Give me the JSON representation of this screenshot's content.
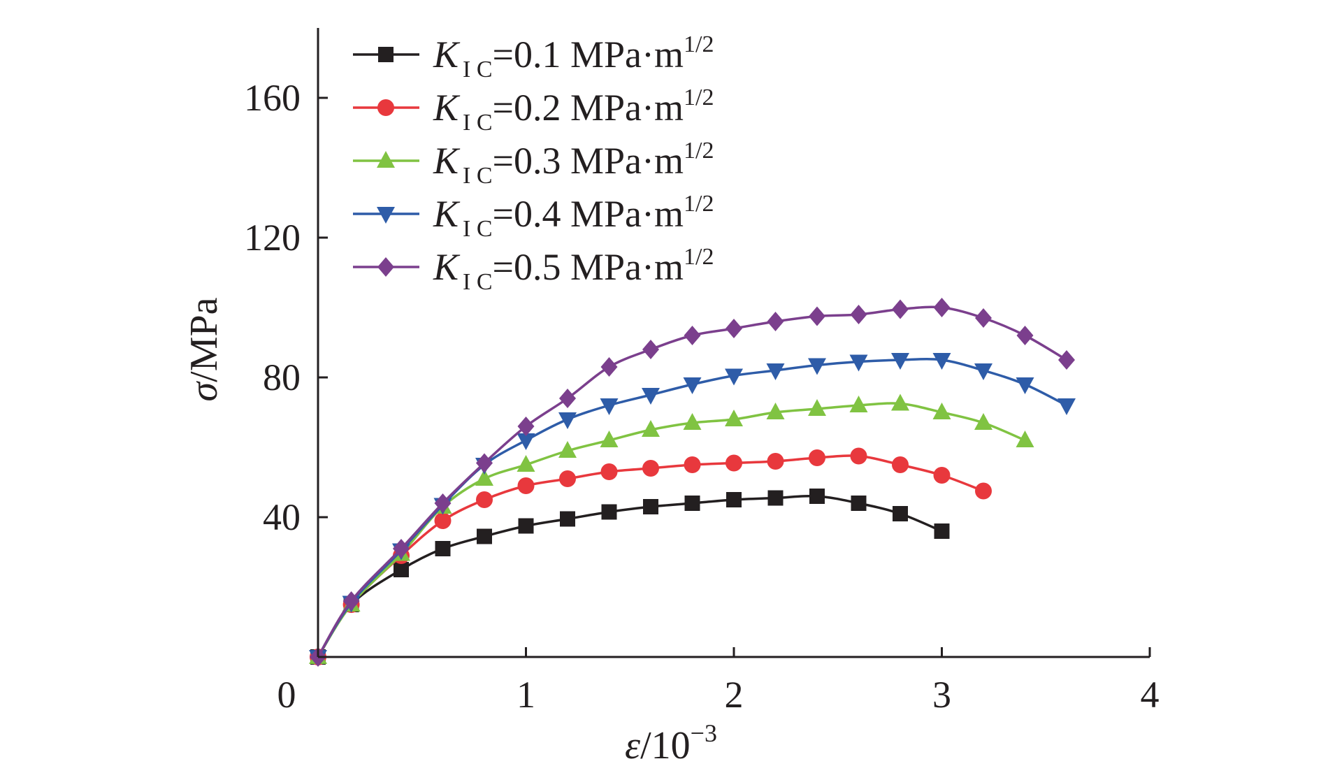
{
  "chart_data": {
    "type": "line",
    "xlabel_symbol": "ε",
    "xlabel_unit": "/10",
    "xlabel_exponent": "−3",
    "ylabel_symbol": "σ",
    "ylabel_unit": "/MPa",
    "xlim": [
      0,
      4
    ],
    "ylim": [
      0,
      180
    ],
    "x_ticks": [
      1,
      2,
      3,
      4
    ],
    "x_tick_labels": [
      "1",
      "2",
      "3",
      "4"
    ],
    "origin_label": "0",
    "y_ticks": [
      40,
      80,
      120,
      160
    ],
    "y_tick_labels": [
      "40",
      "80",
      "120",
      "160"
    ],
    "grid": false,
    "legend_position": "top-left",
    "legend_symbol": "K",
    "legend_subscript": "I C",
    "legend_unit": " MPa·m",
    "legend_exponent": "1/2",
    "series": [
      {
        "name": "=0.1",
        "color": "#231f20",
        "marker": "square",
        "x": [
          0,
          0.16,
          0.4,
          0.6,
          0.8,
          1.0,
          1.2,
          1.4,
          1.6,
          1.8,
          2.0,
          2.2,
          2.4,
          2.6,
          2.8,
          3.0
        ],
        "y": [
          0,
          15,
          25,
          31,
          34.5,
          37.5,
          39.5,
          41.5,
          43,
          44,
          45,
          45.5,
          46,
          44,
          41,
          36
        ]
      },
      {
        "name": "=0.2",
        "color": "#e8383d",
        "marker": "circle",
        "x": [
          0,
          0.16,
          0.4,
          0.6,
          0.8,
          1.0,
          1.2,
          1.4,
          1.6,
          1.8,
          2.0,
          2.2,
          2.4,
          2.6,
          2.8,
          3.0,
          3.2
        ],
        "y": [
          0,
          15,
          29,
          39,
          45,
          49,
          51,
          53,
          54,
          55,
          55.5,
          56,
          57,
          57.5,
          55,
          52,
          47.5
        ]
      },
      {
        "name": "=0.3",
        "color": "#80c342",
        "marker": "triangle-up",
        "x": [
          0,
          0.16,
          0.4,
          0.6,
          0.8,
          1.0,
          1.2,
          1.4,
          1.6,
          1.8,
          2.0,
          2.2,
          2.4,
          2.6,
          2.8,
          3.0,
          3.2,
          3.4
        ],
        "y": [
          0,
          15,
          29.5,
          43,
          51,
          55,
          59,
          62,
          65,
          67,
          68,
          70,
          71,
          72,
          72.5,
          70,
          67,
          62
        ]
      },
      {
        "name": "=0.4",
        "color": "#2e5ca8",
        "marker": "triangle-down",
        "x": [
          0,
          0.16,
          0.4,
          0.6,
          0.8,
          1.0,
          1.2,
          1.4,
          1.6,
          1.8,
          2.0,
          2.2,
          2.4,
          2.6,
          2.8,
          3.0,
          3.2,
          3.4,
          3.6
        ],
        "y": [
          0,
          15.5,
          30.5,
          43.5,
          55,
          62,
          68,
          72,
          75,
          78,
          80.5,
          82,
          83.5,
          84.5,
          85,
          85,
          82,
          78,
          72
        ]
      },
      {
        "name": "=0.5",
        "color": "#7b3f8d",
        "marker": "diamond",
        "x": [
          0,
          0.16,
          0.4,
          0.6,
          0.8,
          1.0,
          1.2,
          1.4,
          1.6,
          1.8,
          2.0,
          2.2,
          2.4,
          2.6,
          2.8,
          3.0,
          3.2,
          3.4,
          3.6
        ],
        "y": [
          0,
          16,
          31,
          44,
          55.5,
          66,
          74,
          83,
          88,
          92,
          94,
          96,
          97.5,
          98,
          99.5,
          100,
          97,
          92,
          85
        ]
      }
    ]
  }
}
